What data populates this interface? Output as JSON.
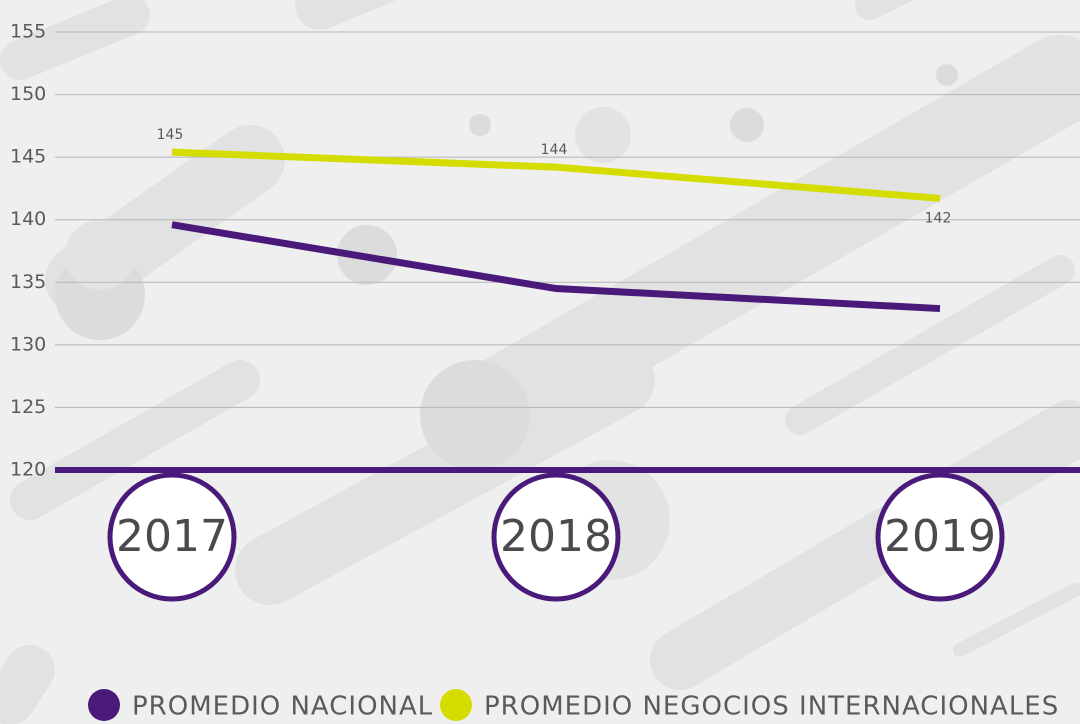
{
  "chart_data": {
    "type": "line",
    "categories": [
      "2017",
      "2018",
      "2019"
    ],
    "series": [
      {
        "name": "PROMEDIO NACIONAL",
        "color": "#4a1a7a",
        "values": [
          139.6,
          134.5,
          132.9
        ]
      },
      {
        "name": "PROMEDIO NEGOCIOS INTERNACIONALES",
        "color": "#d4dc00",
        "values": [
          145.4,
          144.2,
          141.7
        ],
        "value_labels": [
          "145",
          "144",
          "142"
        ]
      }
    ],
    "ylim": [
      120,
      155
    ],
    "yticks": [
      120,
      125,
      130,
      135,
      140,
      145,
      150,
      155
    ],
    "grid": true
  }
}
